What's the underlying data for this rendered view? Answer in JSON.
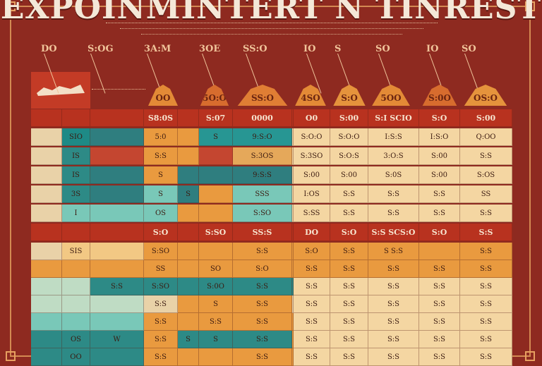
{
  "title": "EXPOINMINTERT N TINREST",
  "column_heads": [
    "DO",
    "S:OG",
    "3A:M",
    "3OE",
    "SS:O",
    "IO",
    "S",
    "SO",
    "IO",
    "SO"
  ],
  "roof_labels": [
    "OO",
    "5O:O",
    "SS:O",
    "4SO",
    "S:O",
    "5OO",
    "S:0O",
    "OS:O"
  ],
  "header_row": [
    "",
    "",
    "",
    "S8:0S",
    "",
    "S:07",
    "0000",
    "",
    "O0",
    "S:00",
    "S:I SCIO",
    "S:O",
    "S:00"
  ],
  "rows": [
    {
      "cells": [
        "",
        "SIO",
        "",
        "5:0",
        "",
        "S",
        "9:S:O",
        "",
        "S:O:O",
        "S:O:O",
        "I:S:S",
        "I:S:O",
        "Q:OO"
      ],
      "colors": [
        "#e9d2a8",
        "#1e8a86",
        "#2f7e7f",
        "#e99a3f",
        "#e99a3f",
        "#279693",
        "#279693",
        "#f4d6a2",
        "#f4d6a2",
        "#f4d6a2",
        "#f4d6a2",
        "#f4d6a2",
        "#f4d6a2"
      ]
    },
    {
      "cells": [
        "",
        "IS",
        "",
        "S:S",
        "",
        "",
        "S:3OS",
        "",
        "S:3SO",
        "S:O:S",
        "3:O:S",
        "S:00",
        "S:S"
      ],
      "colors": [
        "#e9d2a8",
        "#2d8a86",
        "#c44630",
        "#e99a3f",
        "#e99a3f",
        "#c44630",
        "#e5a85a",
        "#f4d6a2",
        "#f4d6a2",
        "#f4d6a2",
        "#f4d6a2",
        "#f4d6a2",
        "#f4d6a2"
      ]
    },
    {
      "cells": [
        "",
        "IS",
        "",
        "S",
        "",
        "",
        "9:S:S",
        "",
        "S:00",
        "S:00",
        "S:0S",
        "S:00",
        "S:OS"
      ],
      "colors": [
        "#e9d2a8",
        "#2d8a86",
        "#2f7e7f",
        "#e99a3f",
        "#2f7e7f",
        "#2f7e7f",
        "#2f7e7f",
        "#f4d6a2",
        "#f4d6a2",
        "#f4d6a2",
        "#f4d6a2",
        "#f4d6a2",
        "#f4d6a2"
      ]
    },
    {
      "cells": [
        "",
        "3S",
        "",
        "S",
        "S",
        "",
        "SSS",
        "",
        "I:OS",
        "S:S",
        "S:S",
        "S:S",
        "SS"
      ],
      "colors": [
        "#e9d2a8",
        "#2d8a86",
        "#2f7e7f",
        "#79c8b8",
        "#2f7e7f",
        "#e99a3f",
        "#79c8b8",
        "#f4d6a2",
        "#f4d6a2",
        "#f4d6a2",
        "#f4d6a2",
        "#f4d6a2",
        "#f4d6a2"
      ]
    },
    {
      "cells": [
        "",
        "I",
        "",
        "OS",
        "",
        "",
        "S:SO",
        "",
        "S:SS",
        "S:S",
        "S:S",
        "S:S",
        "S:S"
      ],
      "colors": [
        "#e9d2a8",
        "#79c8b8",
        "#79c8b8",
        "#79c8b8",
        "#e99a3f",
        "#e99a3f",
        "#79c8b8",
        "#f4d6a2",
        "#f4d6a2",
        "#f4d6a2",
        "#f4d6a2",
        "#f4d6a2",
        "#f4d6a2"
      ]
    }
  ],
  "mid_header": [
    "",
    "",
    "",
    "S:O",
    "",
    "S:SO",
    "SS:S",
    "",
    "DO",
    "S:O",
    "S:S SCS:O",
    "S:O",
    "S:S"
  ],
  "rows2": [
    {
      "cells": [
        "",
        "SIS",
        "",
        "S:SO",
        "",
        "",
        "S:S",
        "",
        "S:O",
        "S:S",
        "S S:S",
        "",
        "S:S"
      ],
      "colors": [
        "#e9d2a8",
        "#f2c884",
        "#f2c884",
        "#e99a3f",
        "#e99a3f",
        "#e99a3f",
        "#e99a3f",
        "#e99a3f",
        "#e99a3f",
        "#e99a3f",
        "#e99a3f",
        "#e99a3f",
        "#e99a3f"
      ]
    },
    {
      "cells": [
        "",
        "",
        "",
        "SS",
        "",
        "SO",
        "S:O",
        "",
        "S:S",
        "S:S",
        "S:S",
        "S:S",
        "S:S"
      ],
      "colors": [
        "#e99a3f",
        "#e99a3f",
        "#e99a3f",
        "#e99a3f",
        "#e99a3f",
        "#e99a3f",
        "#e99a3f",
        "#e99a3f",
        "#e99a3f",
        "#e99a3f",
        "#e99a3f",
        "#e99a3f",
        "#e99a3f"
      ]
    },
    {
      "cells": [
        "",
        "",
        "S:S",
        "S:SO",
        "",
        "S:0O",
        "S:S",
        "",
        "S:S",
        "S:S",
        "S:S",
        "S:S",
        "S:S"
      ],
      "colors": [
        "#bfdcc4",
        "#bfdcc4",
        "#2d8a86",
        "#2d8a86",
        "#2d8a86",
        "#2d8a86",
        "#2d8a86",
        "#2d8a86",
        "#f4d6a2",
        "#f4d6a2",
        "#f4d6a2",
        "#f4d6a2",
        "#f4d6a2"
      ]
    },
    {
      "cells": [
        "",
        "",
        "",
        "S:S",
        "",
        "S",
        "S:S",
        "",
        "S:S",
        "S:S",
        "S:S",
        "S:S",
        "S:S"
      ],
      "colors": [
        "#bfdcc4",
        "#bfdcc4",
        "#bfdcc4",
        "#e9d2a8",
        "#e99a3f",
        "#e99a3f",
        "#e99a3f",
        "#e9d2a8",
        "#f4d6a2",
        "#f4d6a2",
        "#f4d6a2",
        "#f4d6a2",
        "#f4d6a2"
      ]
    },
    {
      "cells": [
        "",
        "",
        "",
        "S:S",
        "",
        "S:S",
        "S:S",
        "",
        "S:S",
        "S:S",
        "S:S",
        "S:S",
        "S:S"
      ],
      "colors": [
        "#79c8b8",
        "#79c8b8",
        "#79c8b8",
        "#e99a3f",
        "#e99a3f",
        "#e99a3f",
        "#e99a3f",
        "#e99a3f",
        "#f4d6a2",
        "#f4d6a2",
        "#f4d6a2",
        "#f4d6a2",
        "#f4d6a2"
      ]
    },
    {
      "cells": [
        "",
        "OS",
        "W",
        "S:S",
        "S",
        "S",
        "S:S",
        "",
        "S:S",
        "S:S",
        "S:S",
        "S:S",
        "S:S"
      ],
      "colors": [
        "#2d8a86",
        "#2d8a86",
        "#2d8a86",
        "#e99a3f",
        "#2d8a86",
        "#2d8a86",
        "#2d8a86",
        "#e99a3f",
        "#f4d6a2",
        "#f4d6a2",
        "#f4d6a2",
        "#f4d6a2",
        "#f4d6a2"
      ]
    },
    {
      "cells": [
        "",
        "OO",
        "",
        "S:S",
        "",
        "",
        "S:S",
        "",
        "S:S",
        "S:S",
        "S:S",
        "S:S",
        "S:S"
      ],
      "colors": [
        "#2d8a86",
        "#2d8a86",
        "#2d8a86",
        "#e99a3f",
        "#e99a3f",
        "#e99a3f",
        "#e99a3f",
        "#e99a3f",
        "#f4d6a2",
        "#f4d6a2",
        "#f4d6a2",
        "#f4d6a2",
        "#f4d6a2"
      ]
    }
  ]
}
